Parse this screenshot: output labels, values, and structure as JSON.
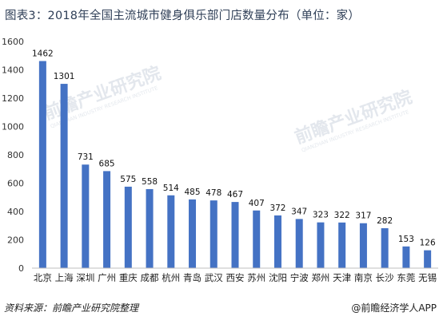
{
  "title": "图表3：2018年全国主流城市健身俱乐部门店数量分布（单位：家）",
  "source": "资料来源：前瞻产业研究院整理",
  "brand": "@前瞻经济学人APP",
  "watermark": {
    "text": "前瞻产业研究院",
    "sub": "QIANZHAN INDUSTRY RESEARCH INSTITUTE"
  },
  "colors": {
    "bar": "#4472c4",
    "axis": "#bfbfbf",
    "title": "#2f3f57",
    "watermark": "#c3ccd8"
  },
  "chart_data": {
    "type": "bar",
    "title": "图表3：2018年全国主流城市健身俱乐部门店数量分布（单位：家）",
    "categories": [
      "北京",
      "上海",
      "深圳",
      "广州",
      "重庆",
      "成都",
      "杭州",
      "青岛",
      "武汉",
      "西安",
      "苏州",
      "沈阳",
      "宁波",
      "郑州",
      "天津",
      "南京",
      "长沙",
      "东莞",
      "无锡"
    ],
    "values": [
      1462,
      1301,
      731,
      685,
      575,
      558,
      514,
      485,
      478,
      467,
      407,
      372,
      347,
      323,
      322,
      317,
      282,
      153,
      126
    ],
    "yticks": [
      0,
      200,
      400,
      600,
      800,
      1000,
      1200,
      1400,
      1600
    ],
    "ylim": [
      0,
      1600
    ],
    "grid": false,
    "legend": "none",
    "xlabel": "",
    "ylabel": ""
  }
}
